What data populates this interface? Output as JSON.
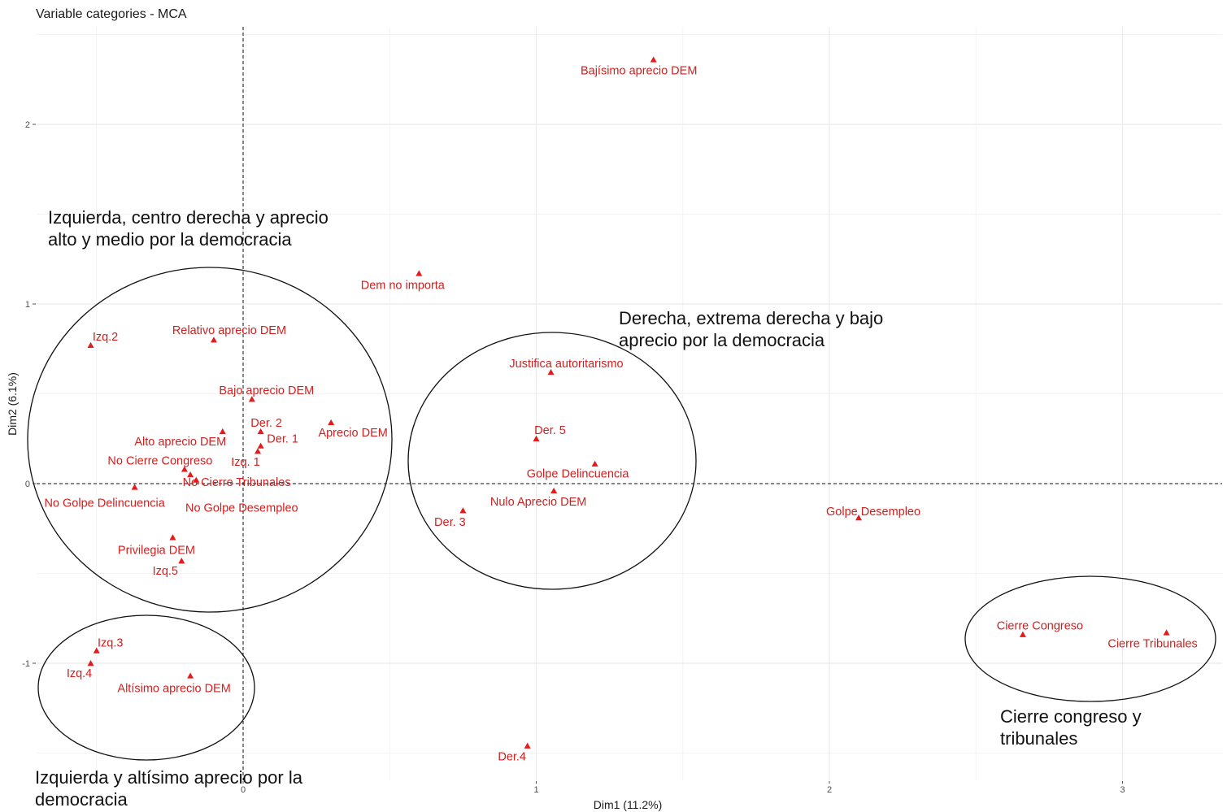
{
  "chart_data": {
    "type": "scatter",
    "title": "Variable categories - MCA",
    "xlabel": "Dim1 (11.2%)",
    "ylabel": "Dim2 (6.1%)",
    "xlim": [
      -0.85,
      3.35
    ],
    "ylim": [
      -1.7,
      2.55
    ],
    "x_ticks": [
      0,
      1,
      2,
      3
    ],
    "y_ticks": [
      -1,
      0,
      1,
      2
    ],
    "grid": true,
    "reference_lines": {
      "x": 0,
      "y": 0
    },
    "point_color": "#e41a1c",
    "points": [
      {
        "label": "Bajísimo aprecio DEM",
        "x": 1.4,
        "y": 2.36
      },
      {
        "label": "Dem no importa",
        "x": 0.6,
        "y": 1.17
      },
      {
        "label": "Izq.2",
        "x": -0.52,
        "y": 0.77
      },
      {
        "label": "Relativo aprecio DEM",
        "x": -0.1,
        "y": 0.8
      },
      {
        "label": "Bajo aprecio DEM",
        "x": 0.03,
        "y": 0.47
      },
      {
        "label": "Aprecio DEM",
        "x": 0.3,
        "y": 0.34
      },
      {
        "label": "Der. 2",
        "x": 0.06,
        "y": 0.29
      },
      {
        "label": "Alto aprecio DEM",
        "x": -0.07,
        "y": 0.29
      },
      {
        "label": "Der. 1",
        "x": 0.06,
        "y": 0.21
      },
      {
        "label": "Izq. 1",
        "x": 0.05,
        "y": 0.18
      },
      {
        "label": "No Cierre Congreso",
        "x": -0.2,
        "y": 0.08
      },
      {
        "label": "No Cierre Tribunales",
        "x": -0.18,
        "y": 0.05
      },
      {
        "label": "No Golpe Delincuencia",
        "x": -0.37,
        "y": -0.02
      },
      {
        "label": "No Golpe Desempleo",
        "x": -0.16,
        "y": 0.02
      },
      {
        "label": "Privilegia DEM",
        "x": -0.24,
        "y": -0.3
      },
      {
        "label": "Izq.5",
        "x": -0.21,
        "y": -0.43
      },
      {
        "label": "Izq.3",
        "x": -0.5,
        "y": -0.93
      },
      {
        "label": "Izq.4",
        "x": -0.52,
        "y": -1.0
      },
      {
        "label": "Altísimo aprecio DEM",
        "x": -0.18,
        "y": -1.07
      },
      {
        "label": "Justifica autoritarismo",
        "x": 1.05,
        "y": 0.62
      },
      {
        "label": "Der. 5",
        "x": 1.0,
        "y": 0.25
      },
      {
        "label": "Golpe Delincuencia",
        "x": 1.2,
        "y": 0.11
      },
      {
        "label": "Nulo Aprecio DEM",
        "x": 1.06,
        "y": -0.04
      },
      {
        "label": "Der. 3",
        "x": 0.75,
        "y": -0.15
      },
      {
        "label": "Golpe Desempleo",
        "x": 2.1,
        "y": -0.19
      },
      {
        "label": "Cierre Congreso",
        "x": 2.66,
        "y": -0.84
      },
      {
        "label": "Cierre Tribunales",
        "x": 3.15,
        "y": -0.83
      },
      {
        "label": "Der.4",
        "x": 0.97,
        "y": -1.46
      }
    ],
    "annotations": [
      {
        "lines": [
          "Izquierda, centro derecha y aprecio",
          "alto y medio por la democracia"
        ]
      },
      {
        "lines": [
          "Derecha, extrema derecha y bajo",
          "aprecio por la democracia"
        ]
      },
      {
        "lines": [
          "Izquierda y altísimo aprecio por la",
          "democracia"
        ]
      },
      {
        "lines": [
          "Cierre congreso y",
          "tribunales"
        ]
      }
    ]
  }
}
